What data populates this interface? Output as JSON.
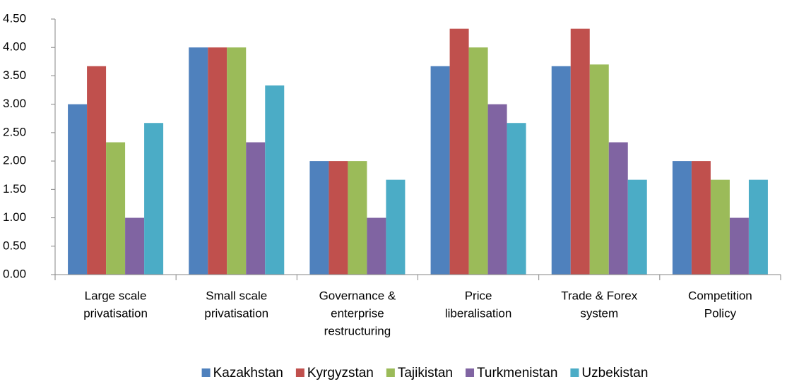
{
  "chart_data": {
    "type": "bar",
    "categories": [
      [
        "Large scale",
        "privatisation"
      ],
      [
        "Small scale",
        "privatisation"
      ],
      [
        "Governance &",
        "enterprise",
        "restructuring"
      ],
      [
        "Price",
        "liberalisation"
      ],
      [
        "Trade & Forex",
        "system"
      ],
      [
        "Competition",
        "Policy"
      ]
    ],
    "series": [
      {
        "name": "Kazakhstan",
        "color": "#4f81bd",
        "values": [
          3.0,
          4.0,
          2.0,
          3.67,
          3.67,
          2.0
        ]
      },
      {
        "name": "Kyrgyzstan",
        "color": "#c0504d",
        "values": [
          3.67,
          4.0,
          2.0,
          4.33,
          4.33,
          2.0
        ]
      },
      {
        "name": "Tajikistan",
        "color": "#9bbb59",
        "values": [
          2.33,
          4.0,
          2.0,
          4.0,
          3.7,
          1.67
        ]
      },
      {
        "name": "Turkmenistan",
        "color": "#8064a2",
        "values": [
          1.0,
          2.33,
          1.0,
          3.0,
          2.33,
          1.0
        ]
      },
      {
        "name": "Uzbekistan",
        "color": "#4bacc6",
        "values": [
          2.67,
          3.33,
          1.67,
          2.67,
          1.67,
          1.67
        ]
      }
    ],
    "ylim": [
      0,
      4.5
    ],
    "yticks": [
      {
        "value": 0,
        "label": "0.00"
      },
      {
        "value": 0.5,
        "label": "0.50"
      },
      {
        "value": 1,
        "label": "1.00"
      },
      {
        "value": 1.5,
        "label": "1.50"
      },
      {
        "value": 2,
        "label": "2.00"
      },
      {
        "value": 2.5,
        "label": "2.50"
      },
      {
        "value": 3,
        "label": "3.00"
      },
      {
        "value": 3.5,
        "label": "3.50"
      },
      {
        "value": 4,
        "label": "4.00"
      },
      {
        "value": 4.5,
        "label": "4.50"
      }
    ],
    "grid": false,
    "legend": "bottom"
  }
}
